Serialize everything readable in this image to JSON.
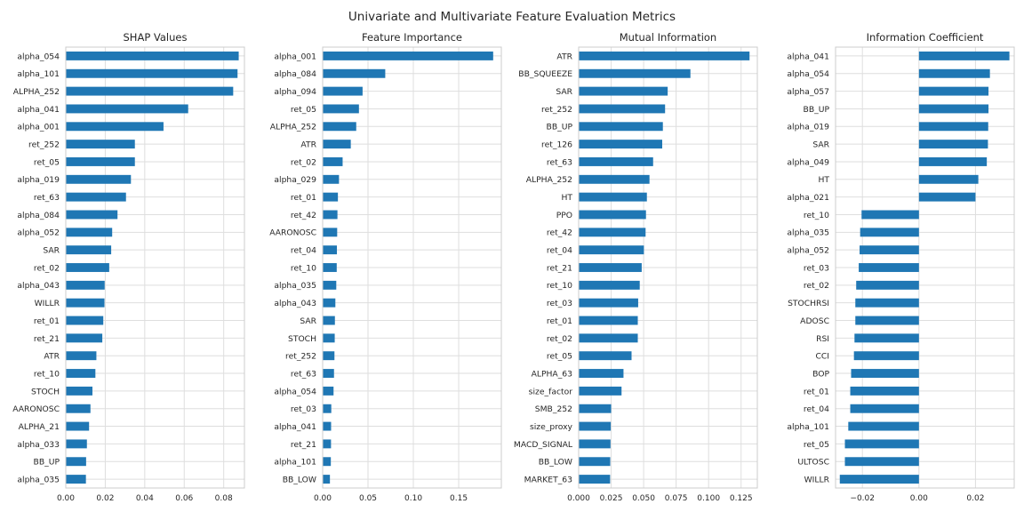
{
  "figure": {
    "title": "Univariate and Multivariate Feature Evaluation Metrics"
  },
  "style": {
    "bar_color": "#1f77b4",
    "grid_color": "#dedede",
    "axis_color": "#cccccc"
  },
  "chart_data": [
    {
      "type": "bar",
      "orientation": "horizontal",
      "title": "SHAP Values",
      "xlabel": "",
      "ylabel": "",
      "xlim": [
        0,
        0.0905
      ],
      "xticks": [
        0.0,
        0.02,
        0.04,
        0.06,
        0.08
      ],
      "xtick_labels": [
        "0.00",
        "0.02",
        "0.04",
        "0.06",
        "0.08"
      ],
      "grid": true,
      "categories": [
        "alpha_054",
        "alpha_101",
        "ALPHA_252",
        "alpha_041",
        "alpha_001",
        "ret_252",
        "ret_05",
        "alpha_019",
        "ret_63",
        "alpha_084",
        "alpha_052",
        "SAR",
        "ret_02",
        "alpha_043",
        "WILLR",
        "ret_01",
        "ret_21",
        "ATR",
        "ret_10",
        "STOCH",
        "AARONOSC",
        "ALPHA_21",
        "alpha_033",
        "BB_UP",
        "alpha_035"
      ],
      "values": [
        0.0876,
        0.087,
        0.0848,
        0.062,
        0.0495,
        0.035,
        0.035,
        0.033,
        0.0305,
        0.0262,
        0.0235,
        0.023,
        0.022,
        0.0197,
        0.0196,
        0.019,
        0.0185,
        0.0155,
        0.015,
        0.0135,
        0.0125,
        0.0118,
        0.0107,
        0.0103,
        0.0102
      ]
    },
    {
      "type": "bar",
      "orientation": "horizontal",
      "title": "Feature Importance",
      "xlabel": "",
      "ylabel": "",
      "xlim": [
        0,
        0.197
      ],
      "xticks": [
        0.0,
        0.05,
        0.1,
        0.15
      ],
      "xtick_labels": [
        "0.00",
        "0.05",
        "0.10",
        "0.15"
      ],
      "grid": true,
      "categories": [
        "alpha_001",
        "alpha_084",
        "alpha_094",
        "ret_05",
        "ALPHA_252",
        "ATR",
        "ret_02",
        "alpha_029",
        "ret_01",
        "ret_42",
        "AARONOSC",
        "ret_04",
        "ret_10",
        "alpha_035",
        "alpha_043",
        "SAR",
        "STOCH",
        "ret_252",
        "ret_63",
        "alpha_054",
        "ret_03",
        "alpha_041",
        "ret_21",
        "alpha_101",
        "BB_LOW"
      ],
      "values": [
        0.188,
        0.069,
        0.044,
        0.04,
        0.037,
        0.031,
        0.022,
        0.018,
        0.0168,
        0.0163,
        0.016,
        0.0157,
        0.0155,
        0.015,
        0.014,
        0.0135,
        0.0133,
        0.013,
        0.0125,
        0.012,
        0.0095,
        0.0093,
        0.0092,
        0.009,
        0.008
      ]
    },
    {
      "type": "bar",
      "orientation": "horizontal",
      "title": "Mutual Information",
      "xlabel": "",
      "ylabel": "",
      "xlim": [
        0,
        0.1375
      ],
      "xticks": [
        0.0,
        0.025,
        0.05,
        0.075,
        0.1,
        0.125
      ],
      "xtick_labels": [
        "0.000",
        "0.025",
        "0.050",
        "0.075",
        "0.100",
        "0.125"
      ],
      "grid": true,
      "categories": [
        "ATR",
        "BB_SQUEEZE",
        "SAR",
        "ret_252",
        "BB_UP",
        "ret_126",
        "ret_63",
        "ALPHA_252",
        "HT",
        "PPO",
        "ret_42",
        "ret_04",
        "ret_21",
        "ret_10",
        "ret_03",
        "ret_01",
        "ret_02",
        "ret_05",
        "ALPHA_63",
        "size_factor",
        "SMB_252",
        "size_proxy",
        "MACD_SIGNAL",
        "BB_LOW",
        "MARKET_63"
      ],
      "values": [
        0.1315,
        0.086,
        0.0685,
        0.0665,
        0.0648,
        0.0643,
        0.0573,
        0.0545,
        0.0525,
        0.0518,
        0.0515,
        0.0502,
        0.0485,
        0.047,
        0.0458,
        0.0455,
        0.0455,
        0.0407,
        0.0345,
        0.033,
        0.025,
        0.0247,
        0.0245,
        0.0243,
        0.0242
      ]
    },
    {
      "type": "bar",
      "orientation": "horizontal",
      "title": "Information Coefficient",
      "xlabel": "",
      "ylabel": "",
      "xlim": [
        -0.0295,
        0.0337
      ],
      "xticks": [
        -0.02,
        0.0,
        0.02
      ],
      "xtick_labels": [
        "−0.02",
        "0.00",
        "0.02"
      ],
      "grid": true,
      "categories": [
        "alpha_041",
        "alpha_054",
        "alpha_057",
        "BB_UP",
        "alpha_019",
        "SAR",
        "alpha_049",
        "HT",
        "alpha_021",
        "ret_10",
        "alpha_035",
        "alpha_052",
        "ret_03",
        "ret_02",
        "STOCHRSI",
        "ADOSC",
        "RSI",
        "CCI",
        "BOP",
        "ret_01",
        "ret_04",
        "alpha_101",
        "ret_05",
        "ULTOSC",
        "WILLR"
      ],
      "values": [
        0.032,
        0.0251,
        0.0246,
        0.0246,
        0.0245,
        0.0244,
        0.024,
        0.021,
        0.02,
        -0.0203,
        -0.0208,
        -0.021,
        -0.0213,
        -0.0222,
        -0.0225,
        -0.0225,
        -0.0228,
        -0.023,
        -0.024,
        -0.0243,
        -0.0243,
        -0.025,
        -0.0262,
        -0.0262,
        -0.028
      ]
    }
  ]
}
